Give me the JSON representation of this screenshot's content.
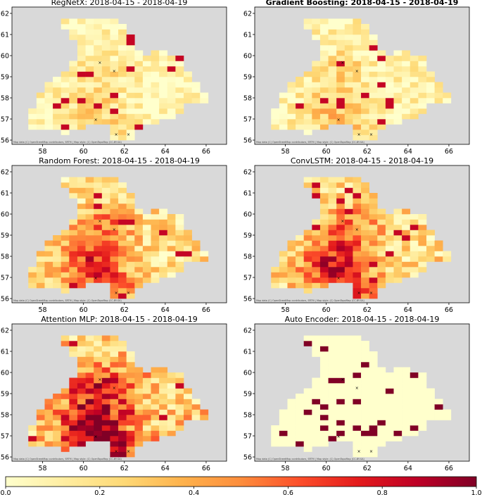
{
  "chart_data": [
    {
      "type": "heatmap",
      "title": "RegNetX: 2018-04-15 - 2018-04-19",
      "title_bold": false,
      "xticks": [
        58,
        60,
        62,
        64,
        66
      ],
      "yticks": [
        56,
        57,
        58,
        59,
        60,
        61,
        62
      ],
      "xlim": [
        56.5,
        67
      ],
      "ylim": [
        55.8,
        62.3
      ],
      "intensity_mean": 0.12,
      "attribution": "Map data (C) OpenStreetMap contributors, SRTM | Map style: (C) OpenTopoMap (CC-BY-SA)"
    },
    {
      "type": "heatmap",
      "title": "Gradient Boosting: 2018-04-15 - 2018-04-19",
      "title_bold": true,
      "xticks": [
        58,
        60,
        62,
        64,
        66
      ],
      "yticks": [
        56,
        57,
        58,
        59,
        60,
        61,
        62
      ],
      "xlim": [
        56.5,
        67
      ],
      "ylim": [
        55.8,
        62.3
      ],
      "intensity_mean": 0.15,
      "attribution": "Map data (C) OpenStreetMap contributors, SRTM | Map style: (C) OpenTopoMap (CC-BY-SA)"
    },
    {
      "type": "heatmap",
      "title": "Random Forest: 2018-04-15 - 2018-04-19",
      "title_bold": false,
      "xticks": [
        58,
        60,
        62,
        64,
        66
      ],
      "yticks": [
        56,
        57,
        58,
        59,
        60,
        61,
        62
      ],
      "xlim": [
        56.5,
        67
      ],
      "ylim": [
        55.8,
        62.3
      ],
      "intensity_mean": 0.35,
      "attribution": "Map data (C) OpenStreetMap contributors, SRTM | Map style: (C) OpenTopoMap (CC-BY-SA)"
    },
    {
      "type": "heatmap",
      "title": "ConvLSTM: 2018-04-15 - 2018-04-19",
      "title_bold": false,
      "xticks": [
        58,
        60,
        62,
        64,
        66
      ],
      "yticks": [
        56,
        57,
        58,
        59,
        60,
        61,
        62
      ],
      "xlim": [
        56.5,
        67
      ],
      "ylim": [
        55.8,
        62.3
      ],
      "intensity_mean": 0.38,
      "attribution": "Map data (C) OpenStreetMap contributors, SRTM | Map style: (C) OpenTopoMap (CC-BY-SA)"
    },
    {
      "type": "heatmap",
      "title": "Attention MLP: 2018-04-15 - 2018-04-19",
      "title_bold": false,
      "xticks": [
        58,
        60,
        62,
        64,
        66
      ],
      "yticks": [
        56,
        57,
        58,
        59,
        60,
        61,
        62
      ],
      "xlim": [
        56.5,
        67
      ],
      "ylim": [
        55.8,
        62.3
      ],
      "intensity_mean": 0.5,
      "attribution": "Map data (C) OpenStreetMap contributors, SRTM | Map style: (C) OpenTopoMap (CC-BY-SA)"
    },
    {
      "type": "heatmap",
      "title": "Auto Encoder: 2018-04-15 - 2018-04-19",
      "title_bold": false,
      "xticks": [
        58,
        60,
        62,
        64,
        66
      ],
      "yticks": [
        56,
        57,
        58,
        59,
        60,
        61,
        62
      ],
      "xlim": [
        56.5,
        67
      ],
      "ylim": [
        55.8,
        62.3
      ],
      "intensity_mean": 0.05,
      "attribution": "Map data (C) OpenStreetMap contributors, SRTM | Map style: (C) OpenTopoMap (CC-BY-SA)"
    }
  ],
  "colorbar": {
    "ticks": [
      0.0,
      0.2,
      0.4,
      0.6,
      0.8,
      1.0
    ],
    "tick_labels": [
      "0.0",
      "0.2",
      "0.4",
      "0.6",
      "0.8",
      "1.0"
    ],
    "range": [
      0,
      1
    ],
    "colormap": "YlOrRd",
    "colors": [
      "#ffffcc",
      "#ffeda0",
      "#fed976",
      "#feb24c",
      "#fd8d3c",
      "#fc4e2a",
      "#e31a1c",
      "#bd0026",
      "#800026"
    ]
  },
  "map_background_color": "#d9d9d9",
  "marker_color": "#000000"
}
